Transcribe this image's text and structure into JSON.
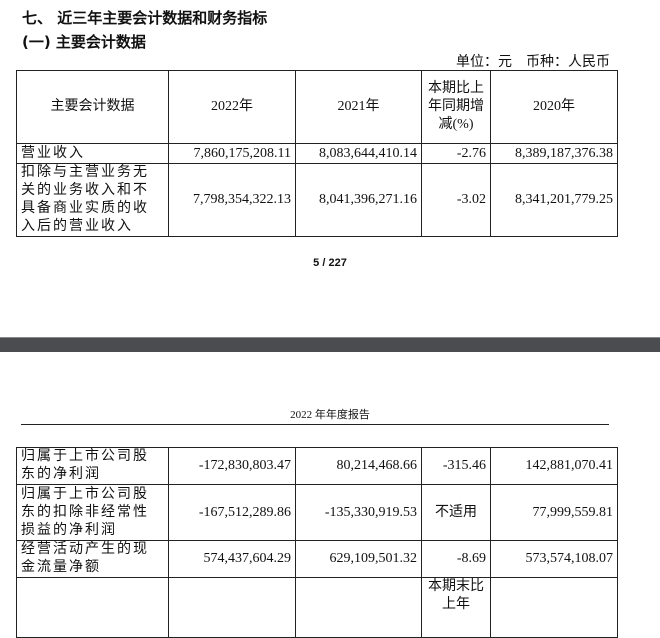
{
  "section_title": "七、 近三年主要会计数据和财务指标",
  "subsection_title": "(一) 主要会计数据",
  "unit_note": "单位：元　币种：人民币",
  "table1": {
    "headers": [
      "主要会计数据",
      "2022年",
      "2021年",
      "本期比上年同期增减(%)",
      "2020年"
    ],
    "rows": [
      [
        "营业收入",
        "7,860,175,208.11",
        "8,083,644,410.14",
        "-2.76",
        "8,389,187,376.38"
      ],
      [
        "扣除与主营业务无关的业务收入和不具备商业实质的收入后的营业收入",
        "7,798,354,322.13",
        "8,041,396,271.16",
        "-3.02",
        "8,341,201,779.25"
      ]
    ]
  },
  "page_number": "5 / 227",
  "report_header": "2022 年年度报告",
  "table2": {
    "rows": [
      [
        "归属于上市公司股东的净利润",
        "-172,830,803.47",
        "80,214,468.66",
        "-315.46",
        "142,881,070.41"
      ],
      [
        "归属于上市公司股东的扣除非经常性损益的净利润",
        "-167,512,289.86",
        "-135,330,919.53",
        "不适用",
        "77,999,559.81"
      ],
      [
        "经营活动产生的现金流量净额",
        "574,437,604.29",
        "629,109,501.32",
        "-8.69",
        "573,574,108.07"
      ],
      [
        "",
        "",
        "",
        "本期末比上年",
        ""
      ]
    ]
  }
}
